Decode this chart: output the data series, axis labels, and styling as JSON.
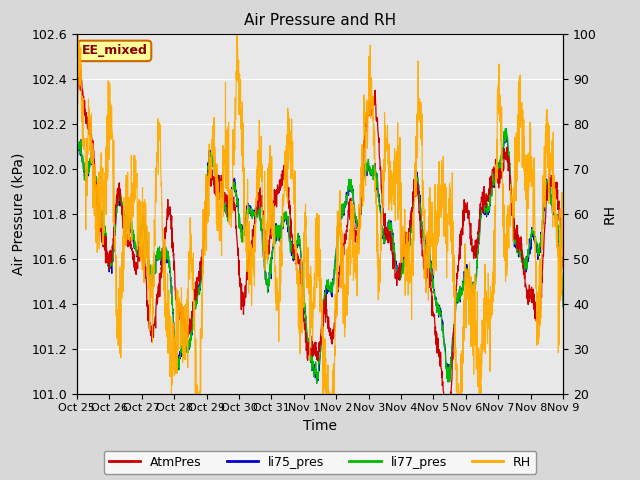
{
  "title": "Air Pressure and RH",
  "xlabel": "Time",
  "ylabel_left": "Air Pressure (kPa)",
  "ylabel_right": "RH",
  "ylim_left": [
    101.0,
    102.6
  ],
  "ylim_right": [
    20,
    100
  ],
  "yticks_left": [
    101.0,
    101.2,
    101.4,
    101.6,
    101.8,
    102.0,
    102.2,
    102.4,
    102.6
  ],
  "yticks_right": [
    20,
    30,
    40,
    50,
    60,
    70,
    80,
    90,
    100
  ],
  "xtick_labels": [
    "Oct 25",
    "Oct 26",
    "Oct 27",
    "Oct 28",
    "Oct 29",
    "Oct 30",
    "Oct 31",
    "Nov 1",
    "Nov 2",
    "Nov 3",
    "Nov 4",
    "Nov 5",
    "Nov 6",
    "Nov 7",
    "Nov 8",
    "Nov 9"
  ],
  "annotation_text": "EE_mixed",
  "colors": {
    "AtmPres": "#cc0000",
    "li75_pres": "#0000cc",
    "li77_pres": "#00bb00",
    "RH": "#ffaa00"
  },
  "fig_facecolor": "#d8d8d8",
  "plot_facecolor": "#e8e8e8",
  "grid_color": "#ffffff",
  "annotation_facecolor": "#ffff99",
  "annotation_edgecolor": "#cc6600",
  "annotation_textcolor": "#880000"
}
